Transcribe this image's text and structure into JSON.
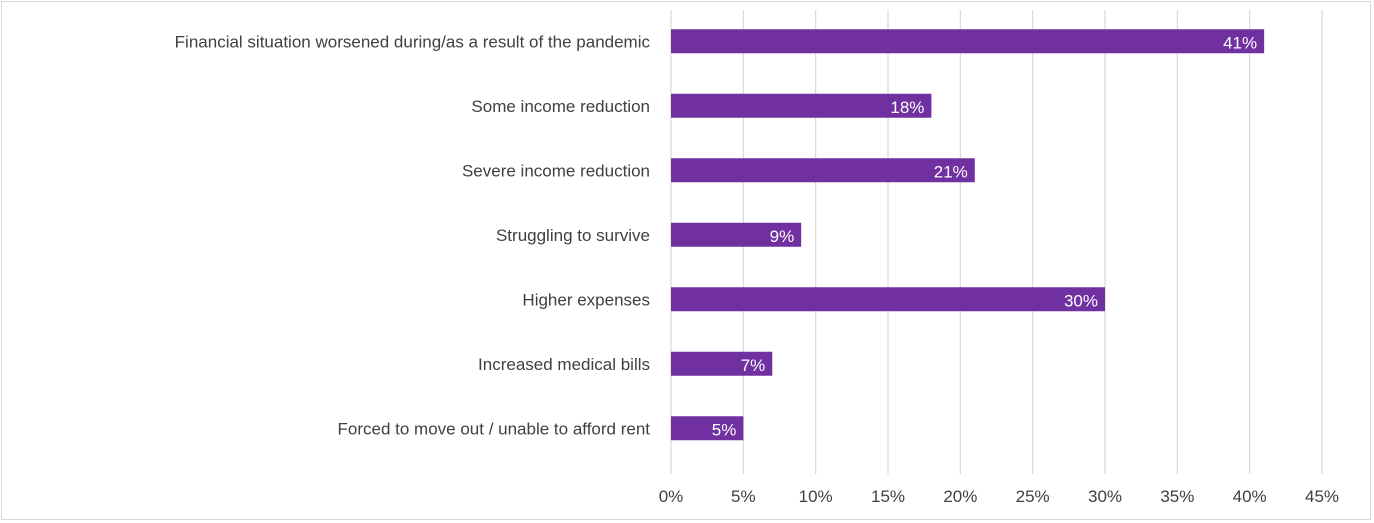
{
  "chart_data": {
    "type": "bar",
    "orientation": "horizontal",
    "categories": [
      "Financial situation worsened during/as a result of the pandemic",
      "Some income reduction",
      "Severe income reduction",
      "Struggling to survive",
      "Higher expenses",
      "Increased medical bills",
      "Forced to move out / unable to afford rent"
    ],
    "values": [
      41,
      18,
      21,
      9,
      30,
      7,
      5
    ],
    "data_labels": [
      "41%",
      "18%",
      "21%",
      "9%",
      "30%",
      "7%",
      "5%"
    ],
    "xlim": [
      0,
      45
    ],
    "x_ticks": [
      0,
      5,
      10,
      15,
      20,
      25,
      30,
      35,
      40,
      45
    ],
    "x_tick_labels": [
      "0%",
      "5%",
      "10%",
      "15%",
      "20%",
      "25%",
      "30%",
      "35%",
      "40%",
      "45%"
    ],
    "grid": true,
    "legend": "none",
    "bar_color": "#7030a0"
  }
}
